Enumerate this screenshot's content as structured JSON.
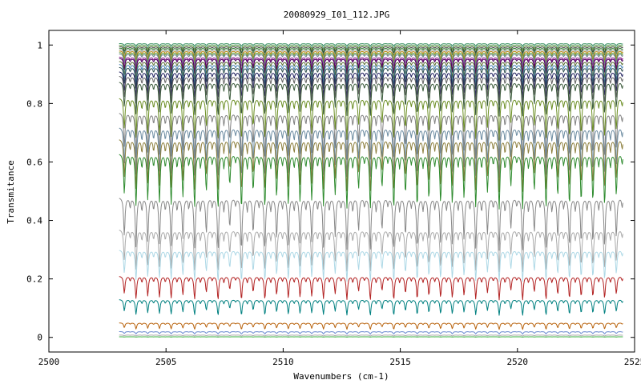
{
  "chart_data": {
    "type": "line",
    "title": "20080929_I01_112.JPG",
    "xlabel": "Wavenumbers (cm-1)",
    "ylabel": "Transmitance",
    "xlim": [
      2500,
      2525
    ],
    "ylim": [
      -0.05,
      1.05
    ],
    "x_ticks": [
      2500,
      2505,
      2510,
      2515,
      2520,
      2525
    ],
    "y_ticks": [
      0,
      0.2,
      0.4,
      0.6,
      0.8,
      1
    ],
    "x_tick_labels": [
      "2500",
      "2505",
      "2510",
      "2515",
      "2520",
      "2525"
    ],
    "y_tick_labels": [
      "0",
      "0.2",
      "0.4",
      "0.6",
      "0.8",
      "1"
    ],
    "x_range_of_data": [
      2503,
      2524.5
    ],
    "grid": false,
    "legend": "none",
    "line_spacing_cm1": 0.5,
    "series": [
      {
        "baseline": 1.005,
        "depth": 0.01,
        "color": "#2e8b57"
      },
      {
        "baseline": 1.0,
        "depth": 0.015,
        "color": "#1f3fbf"
      },
      {
        "baseline": 1.0,
        "depth": 0.02,
        "color": "#7fbf3f"
      },
      {
        "baseline": 0.995,
        "depth": 0.025,
        "color": "#3a3a3a"
      },
      {
        "baseline": 0.99,
        "depth": 0.03,
        "color": "#2a7a2a"
      },
      {
        "baseline": 0.985,
        "depth": 0.035,
        "color": "#a0a0a0"
      },
      {
        "baseline": 0.98,
        "depth": 0.04,
        "color": "#b8860b"
      },
      {
        "baseline": 0.975,
        "depth": 0.045,
        "color": "#5a9a3a"
      },
      {
        "baseline": 0.97,
        "depth": 0.05,
        "color": "#708090"
      },
      {
        "baseline": 0.96,
        "depth": 0.055,
        "color": "#8b1a8b"
      },
      {
        "baseline": 0.955,
        "depth": 0.06,
        "color": "#4b0060"
      },
      {
        "baseline": 0.945,
        "depth": 0.07,
        "color": "#556b2f"
      },
      {
        "baseline": 0.935,
        "depth": 0.08,
        "color": "#4682b4"
      },
      {
        "baseline": 0.925,
        "depth": 0.085,
        "color": "#2f4f4f"
      },
      {
        "baseline": 0.91,
        "depth": 0.1,
        "color": "#1c1c5c"
      },
      {
        "baseline": 0.895,
        "depth": 0.11,
        "color": "#606060"
      },
      {
        "baseline": 0.875,
        "depth": 0.13,
        "color": "#3a5a3a"
      },
      {
        "baseline": 0.82,
        "depth": 0.16,
        "color": "#6b8e23"
      },
      {
        "baseline": 0.77,
        "depth": 0.18,
        "color": "#808080"
      },
      {
        "baseline": 0.72,
        "depth": 0.19,
        "color": "#6a8aa0"
      },
      {
        "baseline": 0.68,
        "depth": 0.2,
        "color": "#8b7d3a"
      },
      {
        "baseline": 0.63,
        "depth": 0.21,
        "color": "#2e8b2e"
      },
      {
        "baseline": 0.48,
        "depth": 0.2,
        "color": "#888888"
      },
      {
        "baseline": 0.37,
        "depth": 0.16,
        "color": "#aaaaaa"
      },
      {
        "baseline": 0.3,
        "depth": 0.12,
        "color": "#add8e6"
      },
      {
        "baseline": 0.21,
        "depth": 0.09,
        "color": "#b22222"
      },
      {
        "baseline": 0.13,
        "depth": 0.06,
        "color": "#008080"
      },
      {
        "baseline": 0.05,
        "depth": 0.025,
        "color": "#b8620b"
      },
      {
        "baseline": 0.02,
        "depth": 0.01,
        "color": "#6a8ad0"
      },
      {
        "baseline": 0.008,
        "depth": 0.004,
        "color": "#aaaaaa"
      },
      {
        "baseline": 0.002,
        "depth": 0.001,
        "color": "#3cb043"
      }
    ]
  }
}
